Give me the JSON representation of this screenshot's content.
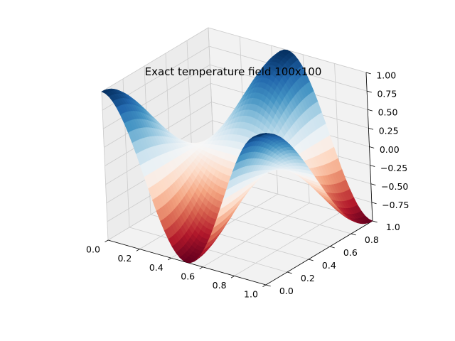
{
  "chart_data": {
    "type": "surface3d",
    "title": "Exact temperature field 100x100",
    "xlabel": "",
    "ylabel": "",
    "zlabel": "",
    "function": "z = cos(2*pi*x) * cos(pi*y)",
    "grid_size": [
      100,
      100
    ],
    "xlim": [
      0.0,
      1.0
    ],
    "ylim": [
      0.0,
      1.0
    ],
    "zlim": [
      -1.0,
      1.0
    ],
    "x_ticks": [
      "0.0",
      "0.2",
      "0.4",
      "0.6",
      "0.8",
      "1.0"
    ],
    "y_ticks": [
      "0.0",
      "0.2",
      "0.4",
      "0.6",
      "0.8",
      "1.0"
    ],
    "z_ticks": [
      "−0.75",
      "−0.50",
      "−0.25",
      "0.00",
      "0.25",
      "0.50",
      "0.75",
      "1.00"
    ],
    "colormap": "RdBu",
    "grid": true,
    "pane_color": "#f2f2f2",
    "grid_color": "#cccccc",
    "colors": [
      "#67001f",
      "#b2182b",
      "#d6604d",
      "#f4a582",
      "#fddbc7",
      "#f7f7f7",
      "#d1e5f0",
      "#92c5de",
      "#4393c3",
      "#2166ac",
      "#053061"
    ]
  }
}
